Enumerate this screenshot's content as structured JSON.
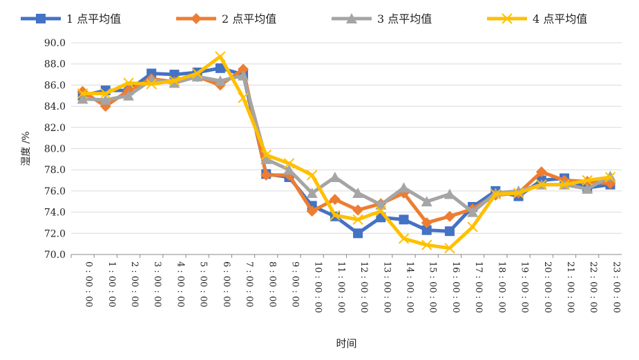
{
  "chart_data": {
    "type": "line",
    "title": "",
    "xlabel": "时间",
    "ylabel": "湿度 /%",
    "ylim": [
      70,
      90
    ],
    "y_ticks": [
      "70.0",
      "72.0",
      "74.0",
      "76.0",
      "78.0",
      "80.0",
      "82.0",
      "84.0",
      "86.0",
      "88.0",
      "90.0"
    ],
    "grid": true,
    "legend_position": "top",
    "categories": [
      "0 : 00 : 00",
      "1 : 00 : 00",
      "2 : 00 : 00",
      "3 : 00 : 00",
      "4 : 00 : 00",
      "5 : 00 : 00",
      "6 : 00 : 00",
      "7 : 00 : 00",
      "8 : 00 : 00",
      "9 : 00 : 00",
      "10 : 00 : 00",
      "11 : 00 : 00",
      "12 : 00 : 00",
      "13 : 00 : 00",
      "14 : 00 : 00",
      "15 : 00 : 00",
      "16 : 00 : 00",
      "17 : 00 : 00",
      "18 : 00 : 00",
      "19 : 00 : 00",
      "20 : 00 : 00",
      "21 : 00 : 00",
      "22 : 00 : 00",
      "23 : 00 : 00"
    ],
    "series": [
      {
        "name": "1 点平均值",
        "color": "#4472C4",
        "marker": "square",
        "values": [
          85.0,
          85.5,
          85.5,
          87.1,
          87.0,
          87.2,
          87.6,
          87.0,
          77.6,
          77.3,
          74.6,
          73.6,
          72.0,
          73.5,
          73.3,
          72.3,
          72.2,
          74.5,
          76.0,
          75.5,
          77.0,
          77.2,
          76.3,
          76.6
        ]
      },
      {
        "name": "2 点平均值",
        "color": "#ED7D31",
        "marker": "diamond",
        "values": [
          85.4,
          84.0,
          85.5,
          86.6,
          86.3,
          86.8,
          86.0,
          87.5,
          77.5,
          77.5,
          74.1,
          75.2,
          74.2,
          74.8,
          75.8,
          73.0,
          73.6,
          74.3,
          75.6,
          75.8,
          77.8,
          77.0,
          76.9,
          76.7
        ]
      },
      {
        "name": "3 点平均值",
        "color": "#A5A5A5",
        "marker": "triangle",
        "values": [
          84.7,
          84.6,
          85.0,
          86.5,
          86.2,
          86.8,
          86.4,
          86.9,
          79.0,
          78.0,
          75.8,
          77.3,
          75.8,
          74.7,
          76.3,
          75.0,
          75.7,
          74.0,
          75.8,
          76.0,
          76.6,
          76.6,
          76.2,
          77.4
        ]
      },
      {
        "name": "4 点平均值",
        "color": "#FFC000",
        "marker": "x",
        "values": [
          85.2,
          85.2,
          86.2,
          86.1,
          86.4,
          87.1,
          88.7,
          84.8,
          79.4,
          78.6,
          77.5,
          73.7,
          73.3,
          74.1,
          71.5,
          70.9,
          70.6,
          72.6,
          75.7,
          75.8,
          76.6,
          76.6,
          77.0,
          77.3
        ]
      }
    ]
  }
}
